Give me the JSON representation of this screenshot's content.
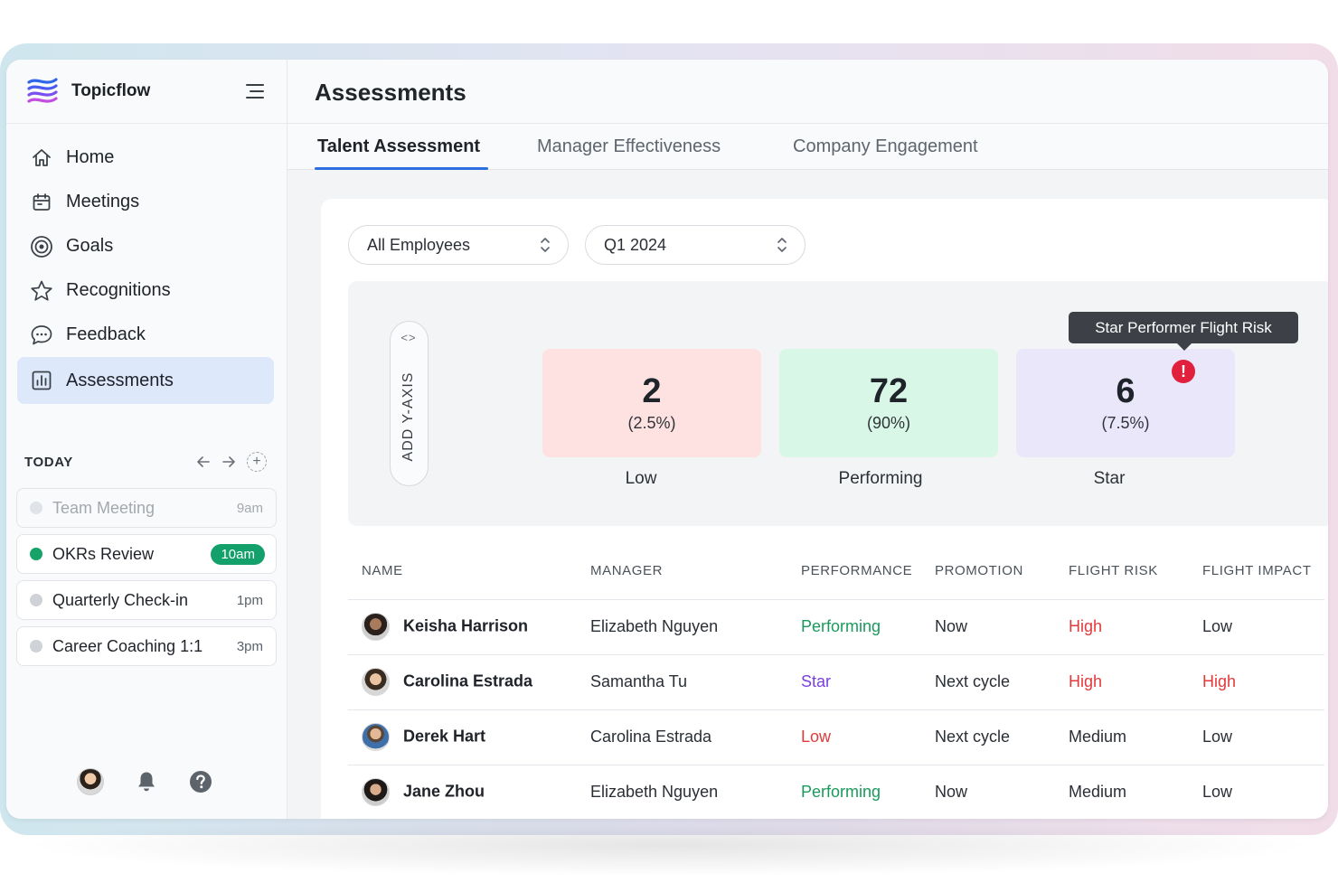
{
  "app": {
    "name": "Topicflow"
  },
  "sidebar": {
    "items": [
      {
        "label": "Home",
        "icon": "home-icon"
      },
      {
        "label": "Meetings",
        "icon": "calendar-icon"
      },
      {
        "label": "Goals",
        "icon": "target-icon"
      },
      {
        "label": "Recognitions",
        "icon": "star-icon"
      },
      {
        "label": "Feedback",
        "icon": "chat-bubble-icon"
      },
      {
        "label": "Assessments",
        "icon": "bar-chart-icon",
        "active": true
      }
    ],
    "today": {
      "heading": "TODAY",
      "events": [
        {
          "name": "Team Meeting",
          "time": "9am",
          "state": "past"
        },
        {
          "name": "OKRs Review",
          "time": "10am",
          "state": "current"
        },
        {
          "name": "Quarterly Check-in",
          "time": "1pm",
          "state": "upcoming"
        },
        {
          "name": "Career Coaching 1:1",
          "time": "3pm",
          "state": "upcoming"
        }
      ]
    }
  },
  "main": {
    "title": "Assessments",
    "tabs": [
      {
        "label": "Talent Assessment",
        "active": true
      },
      {
        "label": "Manager Effectiveness"
      },
      {
        "label": "Company Engagement"
      }
    ],
    "filters": {
      "employees": "All Employees",
      "period": "Q1 2024"
    },
    "matrix": {
      "y_axis_button": "ADD Y-AXIS",
      "y_axis_arrows": "<>",
      "tooltip": "Star Performer Flight Risk",
      "boxes": [
        {
          "count": "2",
          "percent": "(2.5%)",
          "label": "Low",
          "color": "#fde2e1"
        },
        {
          "count": "72",
          "percent": "(90%)",
          "label": "Performing",
          "color": "#d9f7e6"
        },
        {
          "count": "6",
          "percent": "(7.5%)",
          "label": "Star",
          "color": "#ebe7fb"
        }
      ]
    },
    "table": {
      "columns": [
        "NAME",
        "MANAGER",
        "PERFORMANCE",
        "PROMOTION",
        "FLIGHT RISK",
        "FLIGHT IMPACT"
      ],
      "rows": [
        {
          "name": "Keisha Harrison",
          "manager": "Elizabeth Nguyen",
          "performance": "Performing",
          "promotion": "Now",
          "flight_risk": "High",
          "flight_impact": "Low"
        },
        {
          "name": "Carolina Estrada",
          "manager": "Samantha Tu",
          "performance": "Star",
          "promotion": "Next cycle",
          "flight_risk": "High",
          "flight_impact": "High"
        },
        {
          "name": "Derek Hart",
          "manager": "Carolina Estrada",
          "performance": "Low",
          "promotion": "Next cycle",
          "flight_risk": "Medium",
          "flight_impact": "Low"
        },
        {
          "name": "Jane Zhou",
          "manager": "Elizabeth Nguyen",
          "performance": "Performing",
          "promotion": "Now",
          "flight_risk": "Medium",
          "flight_impact": "Low"
        }
      ]
    }
  },
  "colors": {
    "accent": "#2d6fe0",
    "active_nav": "#dde8fb",
    "success": "#13a06a",
    "star": "#7a3fe0",
    "danger": "#e23a3a"
  }
}
